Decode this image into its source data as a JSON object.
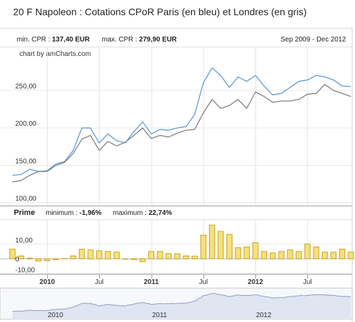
{
  "title": "20 F Napoleon : Cotations CPoR Paris (en bleu) et Londres (en gris)",
  "stats": {
    "min_label": "min. CPR :",
    "min_value": "137,40 EUR",
    "max_label": "max. CPR :",
    "max_value": "279,90 EUR",
    "period": "Sep 2009 - Dec 2012"
  },
  "credit": "chart by amCharts.com",
  "prime": {
    "label": "Prime",
    "min_label": "minimum :",
    "min_value": "-1,96%",
    "max_label": "maximum :",
    "max_value": "22,74%"
  },
  "colors": {
    "paris": "#5b9bd5",
    "londres": "#7f7f7f",
    "bar_fill": "#f5e07a",
    "bar_stroke": "#c9a227",
    "grid": "#e6e6e6"
  },
  "chart_data": [
    {
      "type": "line",
      "title": "20 F Napoleon : Cotations CPoR Paris (en bleu) et Londres (en gris)",
      "x": [
        0,
        1,
        2,
        3,
        4,
        5,
        6,
        7,
        8,
        9,
        10,
        11,
        12,
        13,
        14,
        15,
        16,
        17,
        18,
        19,
        20,
        21,
        22,
        23,
        24,
        25,
        26,
        27,
        28,
        29,
        30,
        31,
        32,
        33,
        34,
        35,
        36,
        37,
        38,
        39
      ],
      "x_tick_labels": [
        {
          "x": 4,
          "label": "2010",
          "bold": true
        },
        {
          "x": 10,
          "label": "Jul",
          "bold": false
        },
        {
          "x": 16,
          "label": "2011",
          "bold": true
        },
        {
          "x": 22,
          "label": "Jul",
          "bold": false
        },
        {
          "x": 28,
          "label": "2012",
          "bold": true
        },
        {
          "x": 34,
          "label": "Jul",
          "bold": false
        }
      ],
      "y_ticks": [
        "100,00",
        "150,00",
        "200,00",
        "250,00"
      ],
      "ylim": [
        97,
        295
      ],
      "grid": true,
      "series": [
        {
          "values": [
            137,
            138,
            145,
            142,
            143,
            152,
            155,
            170,
            200,
            200,
            180,
            192,
            183,
            180,
            195,
            208,
            192,
            198,
            197,
            200,
            202,
            218,
            260,
            280,
            270,
            254,
            268,
            262,
            270,
            256,
            244,
            246,
            254,
            262,
            264,
            270,
            268,
            264,
            256,
            255
          ]
        },
        {
          "values": [
            128,
            130,
            137,
            142,
            142,
            150,
            154,
            166,
            185,
            190,
            170,
            182,
            176,
            181,
            190,
            200,
            186,
            190,
            188,
            193,
            197,
            198,
            220,
            238,
            226,
            230,
            238,
            226,
            248,
            242,
            234,
            236,
            236,
            238,
            245,
            246,
            258,
            250,
            246,
            242
          ]
        }
      ]
    },
    {
      "type": "bar",
      "title": "",
      "x": [
        0,
        1,
        2,
        3,
        4,
        5,
        6,
        7,
        8,
        9,
        10,
        11,
        12,
        13,
        14,
        15,
        16,
        17,
        18,
        19,
        20,
        21,
        22,
        23,
        24,
        25,
        26,
        27,
        28,
        29,
        30,
        31,
        32,
        33,
        34,
        35,
        36,
        37,
        38,
        39
      ],
      "values": [
        6.5,
        2,
        0.5,
        -1.5,
        -1.2,
        -0.5,
        0.2,
        2,
        6.5,
        6,
        5.5,
        5,
        4.5,
        0,
        -0.5,
        -1.96,
        5,
        5,
        3.6,
        3.5,
        2,
        1.8,
        16,
        22.74,
        18.5,
        16.5,
        7.5,
        8,
        11,
        5,
        4,
        5,
        6,
        5,
        10,
        8,
        4.5,
        4.5,
        6.5,
        4.5
      ],
      "y_ticks": [
        "0",
        "10,00",
        "-10,00"
      ],
      "ylim": [
        -10,
        25
      ]
    },
    {
      "type": "area",
      "title": "",
      "x_tick_labels": [
        "2010",
        "2011",
        "2012"
      ]
    }
  ]
}
